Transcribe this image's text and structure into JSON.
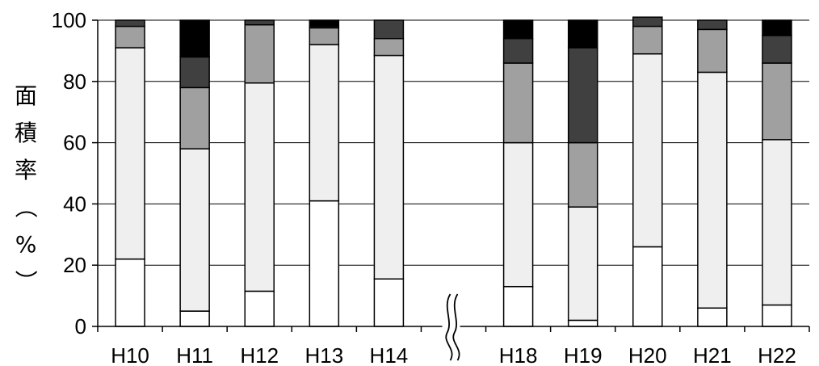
{
  "chart_data": {
    "type": "bar",
    "stacked": true,
    "categories": [
      "H10",
      "H11",
      "H12",
      "H13",
      "H14",
      "H18",
      "H19",
      "H20",
      "H21",
      "H22"
    ],
    "axis_break_after": "H14",
    "axis_break_symbol": "≈",
    "ylabel": "面積率（%）",
    "ylabel_chars": [
      "面",
      "積",
      "率",
      "（",
      "%",
      "）"
    ],
    "ylim": [
      0,
      100
    ],
    "yticks": [
      0,
      20,
      40,
      60,
      80,
      100
    ],
    "grid": true,
    "legend": "none",
    "series": [
      {
        "color": "#ffffff",
        "values": [
          22,
          5,
          11.5,
          41,
          15.5,
          13,
          2,
          26,
          6,
          7
        ]
      },
      {
        "color": "#efefef",
        "values": [
          69,
          53,
          68,
          51,
          73,
          47,
          37,
          63,
          77,
          54
        ]
      },
      {
        "color": "#a0a0a0",
        "values": [
          7,
          20,
          19,
          5.5,
          5.5,
          26,
          21,
          9,
          14,
          25
        ]
      },
      {
        "color": "#404040",
        "values": [
          2,
          10,
          1.5,
          0.5,
          6,
          8,
          31,
          3,
          3,
          9
        ]
      },
      {
        "color": "#000000",
        "values": [
          0,
          12,
          0,
          2,
          0,
          6,
          9,
          0,
          0,
          5
        ]
      }
    ]
  }
}
